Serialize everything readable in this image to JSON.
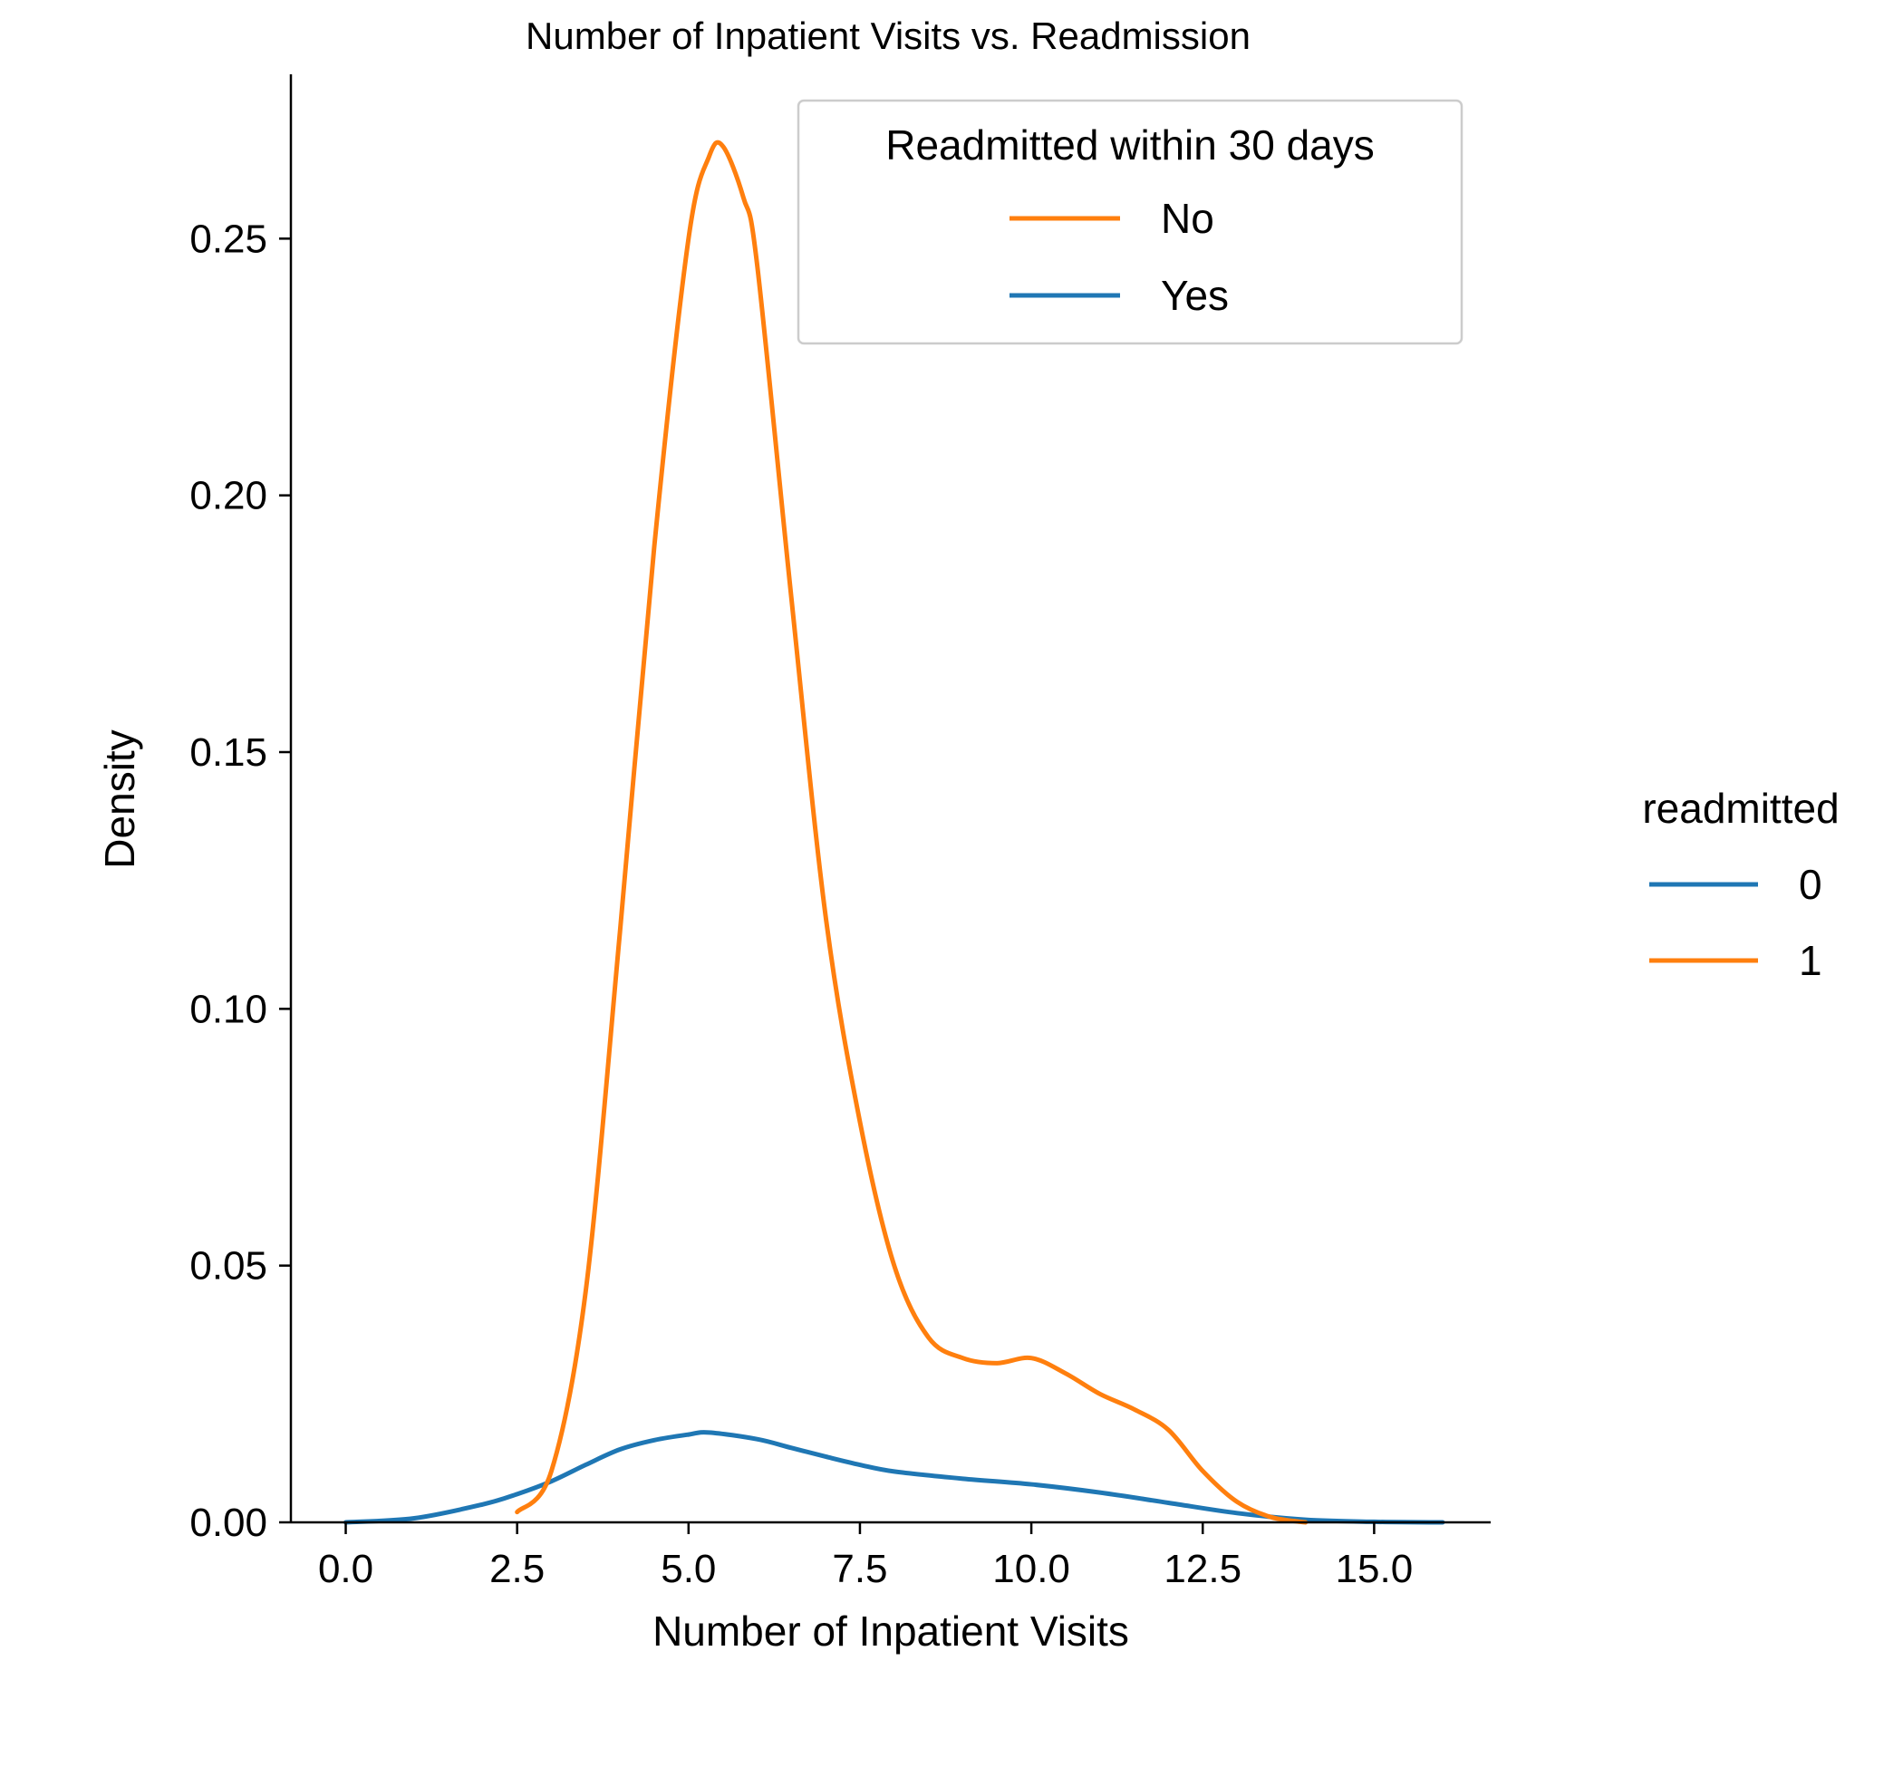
{
  "chart_data": {
    "type": "line",
    "title": "Number of Inpatient Visits vs. Readmission",
    "xlabel": "Number of Inpatient Visits",
    "ylabel": "Density",
    "xlim": [
      -0.8,
      16.7
    ],
    "ylim": [
      0,
      0.282
    ],
    "xticks": [
      0.0,
      2.5,
      5.0,
      7.5,
      10.0,
      12.5,
      15.0
    ],
    "xtick_labels": [
      "0.0",
      "2.5",
      "5.0",
      "7.5",
      "10.0",
      "12.5",
      "15.0"
    ],
    "yticks": [
      0.0,
      0.05,
      0.1,
      0.15,
      0.2,
      0.25
    ],
    "ytick_labels": [
      "0.00",
      "0.05",
      "0.10",
      "0.15",
      "0.20",
      "0.25"
    ],
    "grid": false,
    "series": [
      {
        "name": "0",
        "color": "#1f77b4",
        "x": [
          0.0,
          1.0,
          2.0,
          2.5,
          3.0,
          3.5,
          4.0,
          4.5,
          5.0,
          5.3,
          6.0,
          6.5,
          7.0,
          7.5,
          8.0,
          9.0,
          10.0,
          11.0,
          12.0,
          13.0,
          14.0,
          15.0,
          16.0
        ],
        "values": [
          0.0,
          0.0008,
          0.0035,
          0.0055,
          0.008,
          0.0112,
          0.0142,
          0.016,
          0.0171,
          0.0175,
          0.0162,
          0.0145,
          0.0128,
          0.0112,
          0.0099,
          0.0085,
          0.0074,
          0.0058,
          0.0038,
          0.0018,
          0.0005,
          0.0001,
          0.0
        ]
      },
      {
        "name": "1",
        "color": "#ff7f0e",
        "x": [
          2.5,
          3.0,
          3.5,
          4.0,
          4.5,
          5.0,
          5.3,
          5.5,
          5.8,
          6.0,
          6.5,
          7.0,
          7.5,
          8.0,
          8.5,
          9.0,
          9.5,
          10.0,
          10.5,
          11.0,
          11.5,
          12.0,
          12.5,
          13.0,
          13.5,
          14.0
        ],
        "values": [
          0.002,
          0.01,
          0.045,
          0.115,
          0.19,
          0.25,
          0.266,
          0.268,
          0.258,
          0.245,
          0.18,
          0.118,
          0.078,
          0.05,
          0.036,
          0.032,
          0.031,
          0.032,
          0.029,
          0.025,
          0.022,
          0.018,
          0.01,
          0.004,
          0.001,
          0.0
        ]
      }
    ],
    "legends": [
      {
        "placement": "top-right inside plot",
        "title": "Readmitted within 30 days",
        "entries": [
          {
            "label": "No",
            "color": "#ff7f0e"
          },
          {
            "label": "Yes",
            "color": "#1f77b4"
          }
        ]
      },
      {
        "placement": "right outside plot",
        "title": "readmitted",
        "entries": [
          {
            "label": "0",
            "color": "#1f77b4"
          },
          {
            "label": "1",
            "color": "#ff7f0e"
          }
        ]
      }
    ]
  }
}
